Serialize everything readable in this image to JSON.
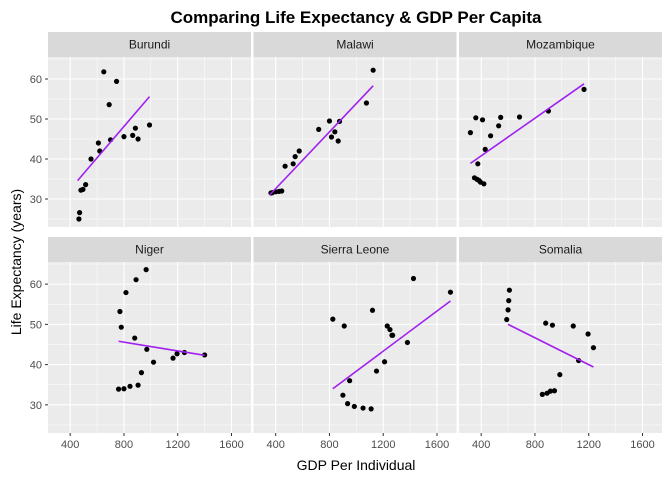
{
  "chart_data": {
    "type": "scatter",
    "title": "Comparing Life Expectancy & GDP Per Capita",
    "xlabel": "GDP Per Individual",
    "ylabel": "Life Expectancy (years)",
    "xlim": [
      235,
      1745
    ],
    "ylim": [
      23,
      65.5
    ],
    "x_ticks": [
      400,
      800,
      1200,
      1600
    ],
    "y_ticks": [
      30,
      40,
      50,
      60
    ],
    "grid": true,
    "trend_color": "#a020f0",
    "panels": [
      {
        "name": "Burundi",
        "points": [
          [
            465,
            25.0
          ],
          [
            470,
            26.6
          ],
          [
            480,
            32.2
          ],
          [
            495,
            32.4
          ],
          [
            515,
            33.6
          ],
          [
            555,
            40.0
          ],
          [
            610,
            44.0
          ],
          [
            620,
            42.0
          ],
          [
            650,
            61.8
          ],
          [
            690,
            53.6
          ],
          [
            700,
            44.8
          ],
          [
            745,
            59.4
          ],
          [
            800,
            45.6
          ],
          [
            865,
            45.9
          ],
          [
            885,
            47.7
          ],
          [
            905,
            45.0
          ],
          [
            990,
            48.5
          ]
        ],
        "fit": [
          [
            455,
            34.6
          ],
          [
            990,
            55.6
          ]
        ]
      },
      {
        "name": "Malawi",
        "points": [
          [
            365,
            31.5
          ],
          [
            375,
            31.6
          ],
          [
            400,
            31.8
          ],
          [
            425,
            31.9
          ],
          [
            445,
            32.0
          ],
          [
            470,
            38.2
          ],
          [
            530,
            38.8
          ],
          [
            545,
            40.6
          ],
          [
            575,
            42.0
          ],
          [
            720,
            47.4
          ],
          [
            800,
            49.5
          ],
          [
            815,
            45.5
          ],
          [
            840,
            46.8
          ],
          [
            865,
            44.5
          ],
          [
            875,
            49.4
          ],
          [
            1075,
            54.0
          ],
          [
            1125,
            62.2
          ]
        ],
        "fit": [
          [
            355,
            31.0
          ],
          [
            1125,
            58.3
          ]
        ]
      },
      {
        "name": "Mozambique",
        "points": [
          [
            320,
            46.6
          ],
          [
            350,
            35.3
          ],
          [
            360,
            50.3
          ],
          [
            370,
            34.9
          ],
          [
            375,
            38.8
          ],
          [
            385,
            34.6
          ],
          [
            395,
            34.2
          ],
          [
            410,
            49.8
          ],
          [
            420,
            33.8
          ],
          [
            430,
            42.4
          ],
          [
            470,
            45.8
          ],
          [
            530,
            48.3
          ],
          [
            545,
            50.4
          ],
          [
            685,
            50.5
          ],
          [
            900,
            52.0
          ],
          [
            1165,
            57.4
          ]
        ],
        "fit": [
          [
            320,
            38.9
          ],
          [
            1165,
            58.8
          ]
        ]
      },
      {
        "name": "Niger",
        "points": [
          [
            760,
            33.9
          ],
          [
            770,
            53.2
          ],
          [
            780,
            49.3
          ],
          [
            800,
            34.0
          ],
          [
            815,
            57.9
          ],
          [
            845,
            34.6
          ],
          [
            880,
            46.6
          ],
          [
            890,
            61.1
          ],
          [
            905,
            34.9
          ],
          [
            930,
            38.0
          ],
          [
            965,
            63.6
          ],
          [
            970,
            43.8
          ],
          [
            1020,
            40.6
          ],
          [
            1165,
            41.6
          ],
          [
            1195,
            42.7
          ],
          [
            1250,
            43.0
          ],
          [
            1400,
            42.4
          ]
        ],
        "fit": [
          [
            760,
            45.8
          ],
          [
            1400,
            42.3
          ]
        ]
      },
      {
        "name": "Sierra Leone",
        "points": [
          [
            825,
            51.3
          ],
          [
            900,
            32.4
          ],
          [
            910,
            49.6
          ],
          [
            935,
            30.3
          ],
          [
            950,
            36.0
          ],
          [
            985,
            29.6
          ],
          [
            1050,
            29.2
          ],
          [
            1110,
            29.0
          ],
          [
            1120,
            53.5
          ],
          [
            1150,
            38.4
          ],
          [
            1210,
            40.7
          ],
          [
            1230,
            49.6
          ],
          [
            1250,
            48.7
          ],
          [
            1265,
            47.3
          ],
          [
            1270,
            47.3
          ],
          [
            1380,
            45.5
          ],
          [
            1425,
            61.4
          ],
          [
            1700,
            58.0
          ]
        ],
        "fit": [
          [
            825,
            34.0
          ],
          [
            1700,
            55.8
          ]
        ]
      },
      {
        "name": "Somalia",
        "points": [
          [
            590,
            51.2
          ],
          [
            600,
            53.6
          ],
          [
            605,
            55.9
          ],
          [
            610,
            58.5
          ],
          [
            855,
            32.6
          ],
          [
            880,
            50.3
          ],
          [
            890,
            32.9
          ],
          [
            915,
            33.4
          ],
          [
            930,
            49.8
          ],
          [
            945,
            33.5
          ],
          [
            985,
            37.5
          ],
          [
            1085,
            49.6
          ],
          [
            1125,
            41.0
          ],
          [
            1195,
            47.6
          ],
          [
            1235,
            44.2
          ]
        ],
        "fit": [
          [
            600,
            50.0
          ],
          [
            1235,
            39.4
          ]
        ]
      }
    ]
  }
}
